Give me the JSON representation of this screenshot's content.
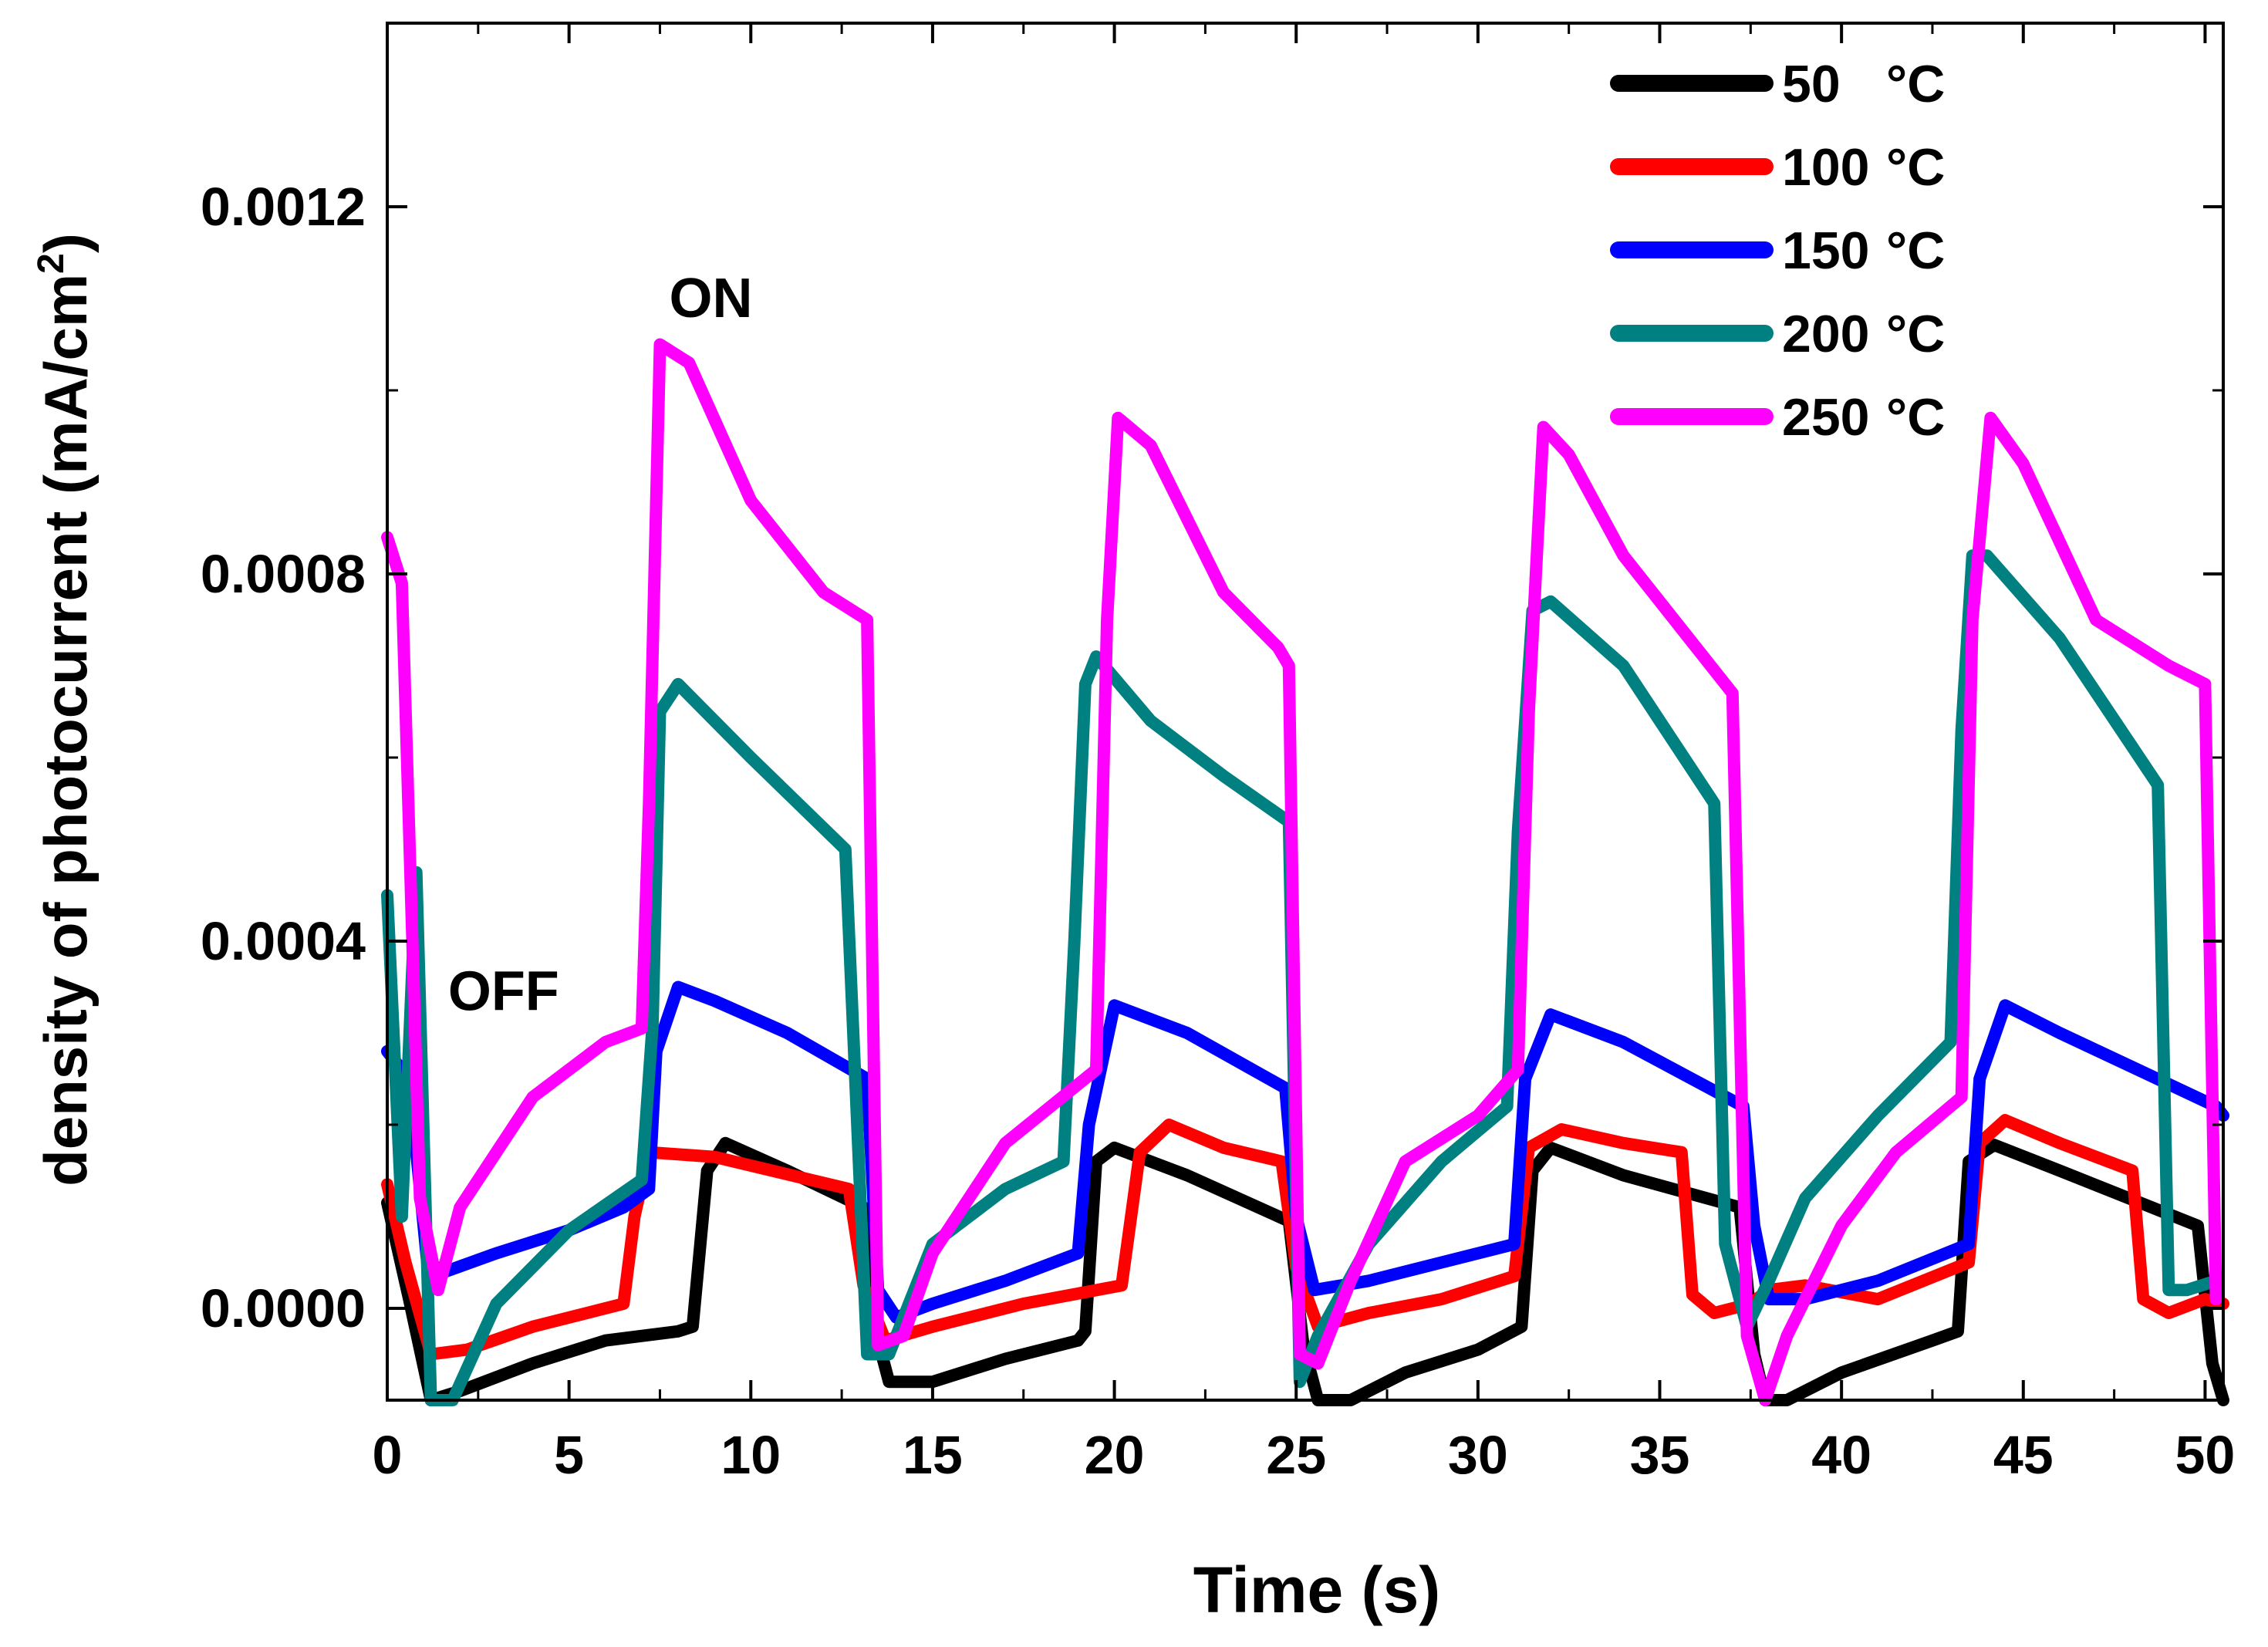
{
  "chart_data": {
    "type": "line",
    "title": "",
    "xlabel": "Time (s)",
    "ylabel": "density of photocurrent (mA/cm",
    "ylabel_sup": "2",
    "ylabel_close": ")",
    "xlim": [
      0,
      50.5
    ],
    "ylim": [
      -0.0001,
      0.0014
    ],
    "x_ticks": [
      0,
      5,
      10,
      15,
      20,
      25,
      30,
      35,
      40,
      45,
      50
    ],
    "x_tick_labels": [
      "0",
      "5",
      "10",
      "15",
      "20",
      "25",
      "30",
      "35",
      "40",
      "45",
      "50"
    ],
    "y_ticks": [
      0,
      0.0004,
      0.0008,
      0.0012
    ],
    "y_tick_labels": [
      "0.0000",
      "0.0004",
      "0.0008",
      "0.0012"
    ],
    "annotations": [
      {
        "text": "ON",
        "x": 8.9,
        "y": 0.00108
      },
      {
        "text": "OFF",
        "x": 3.2,
        "y": 0.000325
      }
    ],
    "legend_position": "top-right",
    "series": [
      {
        "name": "50 °C",
        "label_num": "50",
        "label_unit": "°C",
        "color": "#000000",
        "points": [
          [
            0,
            0.000115
          ],
          [
            0.6,
            1e-05
          ],
          [
            1.2,
            -0.0001
          ],
          [
            2,
            -9e-05
          ],
          [
            4,
            -6e-05
          ],
          [
            6,
            -3.5e-05
          ],
          [
            8,
            -2.5e-05
          ],
          [
            8.4,
            -2e-05
          ],
          [
            8.8,
            0.00015
          ],
          [
            9.3,
            0.00018
          ],
          [
            11,
            0.00015
          ],
          [
            13.1,
            0.00011
          ],
          [
            13.4,
            -2e-05
          ],
          [
            13.8,
            -8e-05
          ],
          [
            15,
            -8e-05
          ],
          [
            17,
            -5.5e-05
          ],
          [
            19,
            -3.5e-05
          ],
          [
            19.2,
            -2.5e-05
          ],
          [
            19.5,
            0.00016
          ],
          [
            20,
            0.000175
          ],
          [
            22,
            0.000145
          ],
          [
            24.8,
            9.5e-05
          ],
          [
            25.2,
            -4e-05
          ],
          [
            25.6,
            -0.0001
          ],
          [
            26.5,
            -0.0001
          ],
          [
            28,
            -7e-05
          ],
          [
            30,
            -4.5e-05
          ],
          [
            31.2,
            -2e-05
          ],
          [
            31.5,
            0.00015
          ],
          [
            32,
            0.000175
          ],
          [
            34,
            0.000145
          ],
          [
            37.2,
            0.00011
          ],
          [
            37.6,
            -5e-05
          ],
          [
            37.9,
            -0.0001
          ],
          [
            38.5,
            -0.0001
          ],
          [
            40,
            -7e-05
          ],
          [
            42.5,
            -3.5e-05
          ],
          [
            43.2,
            -2.5e-05
          ],
          [
            43.5,
            0.00016
          ],
          [
            44.2,
            0.000178
          ],
          [
            46,
            0.00015
          ],
          [
            49.8,
            9e-05
          ],
          [
            50.2,
            -6e-05
          ],
          [
            50.5,
            -0.0001
          ]
        ]
      },
      {
        "name": "100 °C",
        "label_num": "100",
        "label_unit": "°C",
        "color": "#ff0000",
        "points": [
          [
            0,
            0.000135
          ],
          [
            0.5,
            5e-05
          ],
          [
            1.2,
            -5e-05
          ],
          [
            2.2,
            -4.5e-05
          ],
          [
            4,
            -2e-05
          ],
          [
            6.5,
            5e-06
          ],
          [
            6.8,
            0.0001
          ],
          [
            7.2,
            0.00017
          ],
          [
            9,
            0.000165
          ],
          [
            12.7,
            0.00013
          ],
          [
            13.1,
            2.5e-05
          ],
          [
            13.7,
            -3.5e-05
          ],
          [
            15,
            -2e-05
          ],
          [
            17.5,
            5e-06
          ],
          [
            20.2,
            2.5e-05
          ],
          [
            20.7,
            0.00017
          ],
          [
            21.5,
            0.0002
          ],
          [
            23,
            0.000175
          ],
          [
            24.6,
            0.00016
          ],
          [
            25,
            4.5e-05
          ],
          [
            25.6,
            -2e-05
          ],
          [
            27,
            -5e-06
          ],
          [
            29,
            1e-05
          ],
          [
            31,
            3.5e-05
          ],
          [
            31.4,
            0.000175
          ],
          [
            32.3,
            0.000195
          ],
          [
            34,
            0.00018
          ],
          [
            35.6,
            0.00017
          ],
          [
            35.9,
            1.5e-05
          ],
          [
            36.5,
            -5e-06
          ],
          [
            37.5,
            5e-06
          ],
          [
            38,
            2e-05
          ],
          [
            39,
            2.5e-05
          ],
          [
            41,
            1e-05
          ],
          [
            43.5,
            5e-05
          ],
          [
            43.8,
            0.00018
          ],
          [
            44.5,
            0.000205
          ],
          [
            46,
            0.00018
          ],
          [
            48,
            0.00015
          ],
          [
            48.3,
            1e-05
          ],
          [
            49,
            -5e-06
          ],
          [
            50,
            1e-05
          ],
          [
            50.5,
            5e-06
          ]
        ]
      },
      {
        "name": "150 °C",
        "label_num": "150",
        "label_unit": "°C",
        "color": "#0000ff",
        "points": [
          [
            0,
            0.00028
          ],
          [
            0.6,
            0.00025
          ],
          [
            1.1,
            5e-05
          ],
          [
            1.6,
            4e-05
          ],
          [
            3,
            6e-05
          ],
          [
            5,
            8.5e-05
          ],
          [
            6.5,
            0.00011
          ],
          [
            7.2,
            0.00013
          ],
          [
            7.4,
            0.00028
          ],
          [
            8,
            0.00035
          ],
          [
            9,
            0.000335
          ],
          [
            11,
            0.0003
          ],
          [
            13.2,
            0.00025
          ],
          [
            13.5,
            2e-05
          ],
          [
            14,
            -1e-05
          ],
          [
            15,
            5e-06
          ],
          [
            17,
            3e-05
          ],
          [
            19,
            6e-05
          ],
          [
            19.3,
            0.0002
          ],
          [
            20,
            0.00033
          ],
          [
            22,
            0.0003
          ],
          [
            24.7,
            0.00024
          ],
          [
            25,
            0.0001
          ],
          [
            25.5,
            2e-05
          ],
          [
            27,
            3e-05
          ],
          [
            29,
            5e-05
          ],
          [
            31,
            7e-05
          ],
          [
            31.3,
            0.00025
          ],
          [
            32,
            0.00032
          ],
          [
            34,
            0.00029
          ],
          [
            37.3,
            0.00022
          ],
          [
            37.6,
            9e-05
          ],
          [
            38,
            1e-05
          ],
          [
            39,
            1e-05
          ],
          [
            41,
            3e-05
          ],
          [
            43.5,
            7e-05
          ],
          [
            43.8,
            0.00025
          ],
          [
            44.5,
            0.00033
          ],
          [
            46,
            0.0003
          ],
          [
            50.3,
            0.00022
          ],
          [
            50.5,
            0.00021
          ]
        ]
      },
      {
        "name": "200 °C",
        "label_num": "200",
        "label_unit": "°C",
        "color": "#008080",
        "points": [
          [
            0,
            0.00045
          ],
          [
            0.4,
            0.0001
          ],
          [
            0.8,
            0.000475
          ],
          [
            1.2,
            -0.0001
          ],
          [
            1.8,
            -0.0001
          ],
          [
            3,
            5e-06
          ],
          [
            5,
            8.5e-05
          ],
          [
            7,
            0.00014
          ],
          [
            7.3,
            0.00031
          ],
          [
            7.5,
            0.00065
          ],
          [
            8,
            0.00068
          ],
          [
            10,
            0.0006
          ],
          [
            12.6,
            0.0005
          ],
          [
            13.2,
            -5e-05
          ],
          [
            13.8,
            -5e-05
          ],
          [
            15,
            7e-05
          ],
          [
            17,
            0.00013
          ],
          [
            18.6,
            0.00016
          ],
          [
            18.9,
            0.0004
          ],
          [
            19.2,
            0.00068
          ],
          [
            19.5,
            0.00071
          ],
          [
            21,
            0.00064
          ],
          [
            23,
            0.00058
          ],
          [
            24.8,
            0.00053
          ],
          [
            25.1,
            -8e-05
          ],
          [
            25.6,
            -3e-05
          ],
          [
            27,
            7e-05
          ],
          [
            29,
            0.00016
          ],
          [
            30.8,
            0.00022
          ],
          [
            31.1,
            0.00052
          ],
          [
            31.5,
            0.00076
          ],
          [
            32,
            0.00077
          ],
          [
            34,
            0.0007
          ],
          [
            36.5,
            0.00055
          ],
          [
            36.8,
            7e-05
          ],
          [
            37.4,
            -2e-05
          ],
          [
            38,
            3e-05
          ],
          [
            39,
            0.00012
          ],
          [
            41,
            0.00021
          ],
          [
            43,
            0.00029
          ],
          [
            43.3,
            0.00063
          ],
          [
            43.6,
            0.00082
          ],
          [
            44,
            0.00082
          ],
          [
            46,
            0.00073
          ],
          [
            48.7,
            0.00057
          ],
          [
            49,
            2e-05
          ],
          [
            49.5,
            2e-05
          ],
          [
            50.3,
            3e-05
          ]
        ]
      },
      {
        "name": "250 °C",
        "label_num": "250",
        "label_unit": "°C",
        "color": "#ff00ff",
        "points": [
          [
            0,
            0.00084
          ],
          [
            0.4,
            0.00079
          ],
          [
            0.9,
            0.00012
          ],
          [
            1.4,
            2e-05
          ],
          [
            2,
            0.00011
          ],
          [
            4,
            0.00023
          ],
          [
            6,
            0.00029
          ],
          [
            7,
            0.000305
          ],
          [
            7.2,
            0.00055
          ],
          [
            7.5,
            0.00105
          ],
          [
            8.3,
            0.00103
          ],
          [
            10,
            0.00088
          ],
          [
            12,
            0.00078
          ],
          [
            13.2,
            0.00075
          ],
          [
            13.5,
            -4e-05
          ],
          [
            14.2,
            -3e-05
          ],
          [
            15,
            6e-05
          ],
          [
            17,
            0.00018
          ],
          [
            19.5,
            0.00026
          ],
          [
            19.8,
            0.00075
          ],
          [
            20.1,
            0.00097
          ],
          [
            21,
            0.00094
          ],
          [
            23,
            0.00078
          ],
          [
            24.5,
            0.00072
          ],
          [
            24.8,
            0.0007
          ],
          [
            25.1,
            -5e-05
          ],
          [
            25.6,
            -6e-05
          ],
          [
            26.5,
            3e-05
          ],
          [
            28,
            0.00016
          ],
          [
            30,
            0.00021
          ],
          [
            31.1,
            0.00026
          ],
          [
            31.4,
            0.00065
          ],
          [
            31.8,
            0.00096
          ],
          [
            32.5,
            0.00093
          ],
          [
            34,
            0.00082
          ],
          [
            37,
            0.00067
          ],
          [
            37.4,
            -3e-05
          ],
          [
            37.9,
            -0.0001
          ],
          [
            38.5,
            -3e-05
          ],
          [
            40,
            9e-05
          ],
          [
            41.5,
            0.00017
          ],
          [
            43.3,
            0.00023
          ],
          [
            43.6,
            0.00075
          ],
          [
            44.1,
            0.00097
          ],
          [
            45,
            0.00092
          ],
          [
            47,
            0.00075
          ],
          [
            49,
            0.0007
          ],
          [
            50,
            0.00068
          ],
          [
            50.3,
            1e-05
          ]
        ]
      }
    ]
  }
}
